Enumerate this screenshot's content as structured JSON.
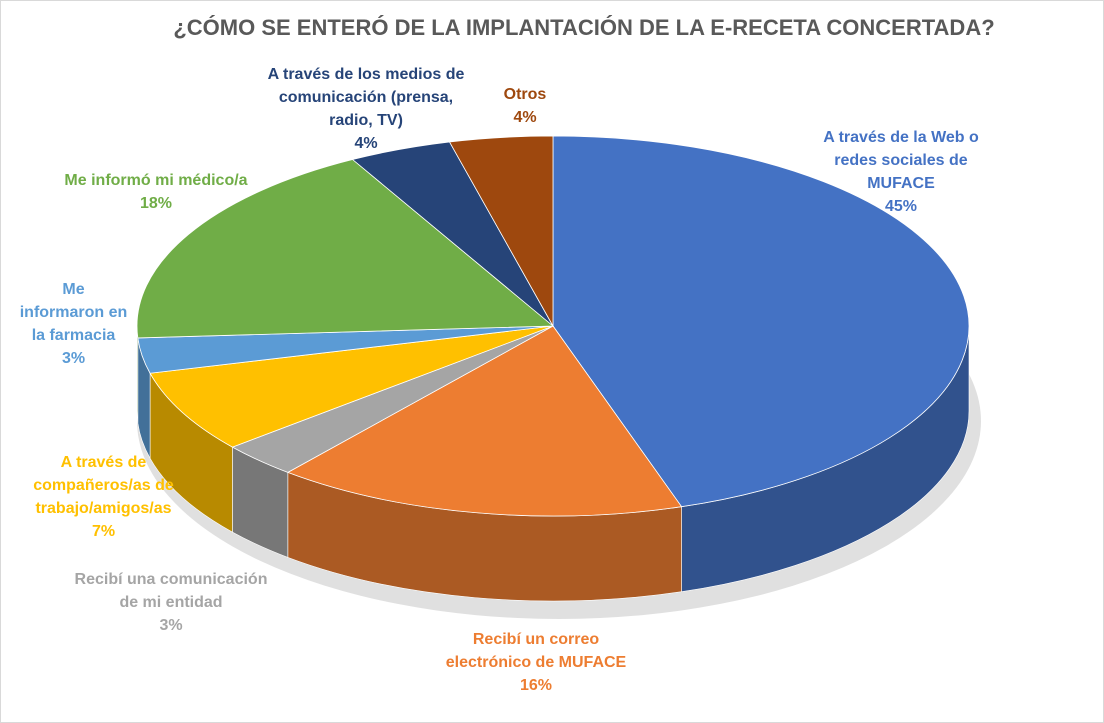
{
  "chart_data": {
    "type": "pie",
    "style": "3d",
    "title": "¿CÓMO SE ENTERÓ DE LA IMPLANTACIÓN DE LA E-RECETA CONCERTADA?",
    "legend": "none",
    "slices": [
      {
        "label": "A través de la Web o\nredes sociales de\nMUFACE",
        "value": 45,
        "display": "45%",
        "color": "#4472C4"
      },
      {
        "label": "Recibí un correo\nelectrónico de MUFACE",
        "value": 16,
        "display": "16%",
        "color": "#ED7D31"
      },
      {
        "label": "Recibí una comunicación\nde mi entidad",
        "value": 3,
        "display": "3%",
        "color": "#A5A5A5"
      },
      {
        "label": "A través de\ncompañeros/as de\ntrabajo/amigos/as",
        "value": 7,
        "display": "7%",
        "color": "#FFC000"
      },
      {
        "label": "Me\ninformaron en\nla farmacia",
        "value": 3,
        "display": "3%",
        "color": "#5B9BD5"
      },
      {
        "label": "Me informó mi médico/a",
        "value": 18,
        "display": "18%",
        "color": "#70AD47"
      },
      {
        "label": "A través de los medios de\ncomunicación (prensa,\nradio, TV)",
        "value": 4,
        "display": "4%",
        "color": "#264478"
      },
      {
        "label": "Otros",
        "value": 4,
        "display": "4%",
        "color": "#9E480E"
      }
    ]
  }
}
